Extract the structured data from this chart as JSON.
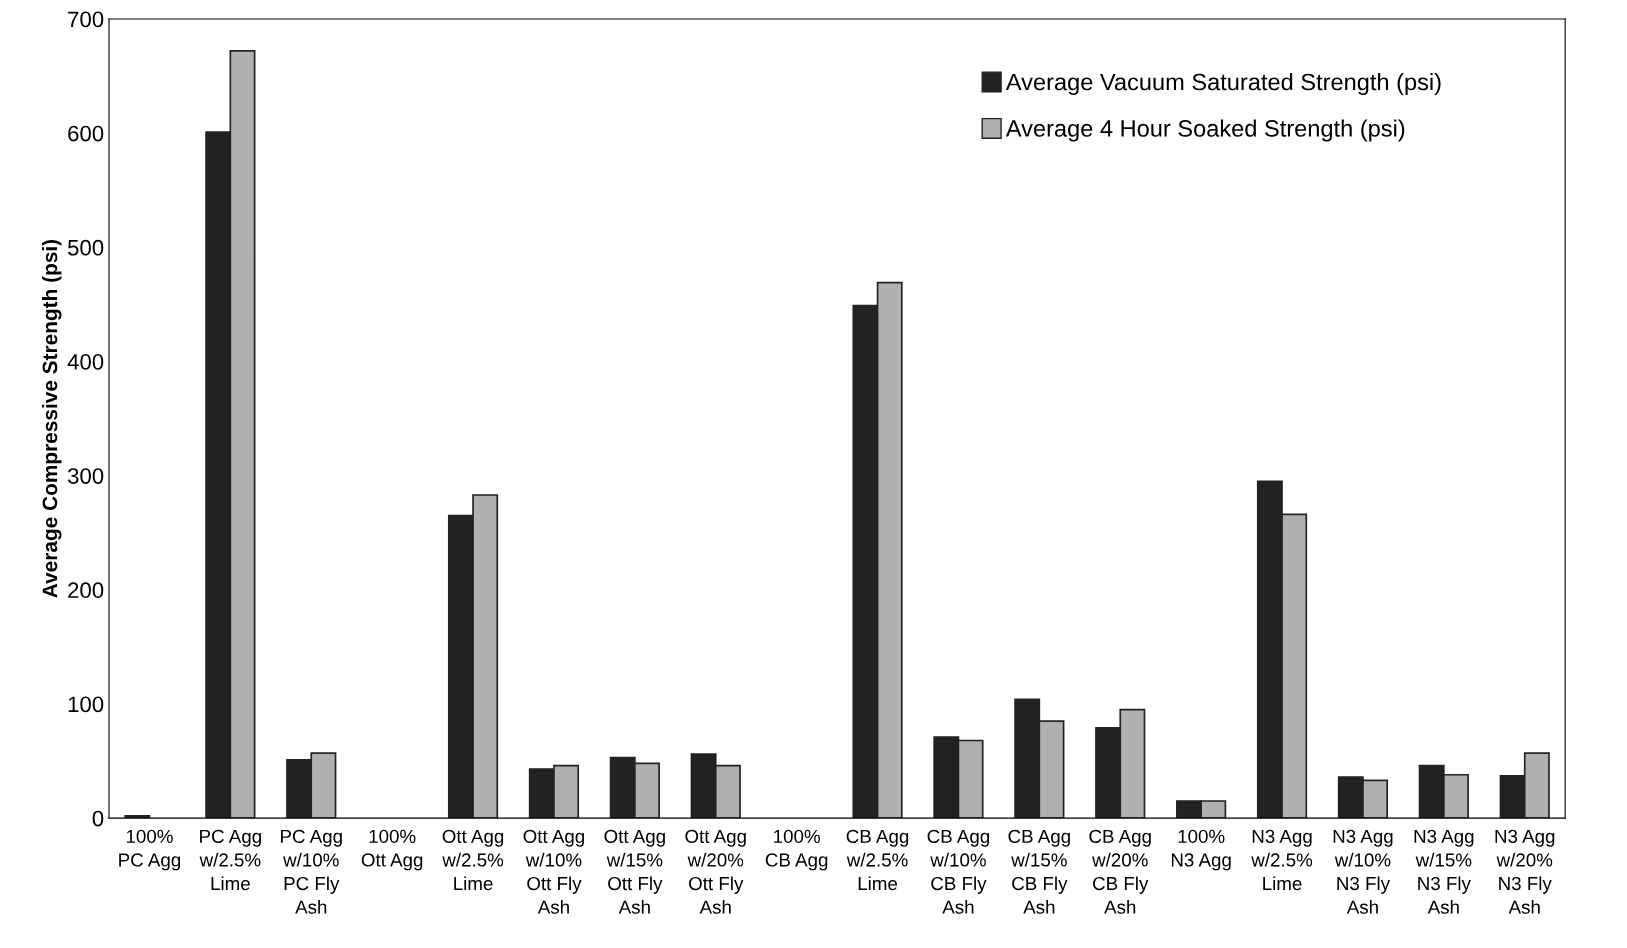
{
  "chart_data": {
    "type": "bar",
    "categories": [
      "100%\nPC Agg",
      "PC Agg\nw/2.5%\nLime",
      "PC Agg\nw/10%\nPC Fly\nAsh",
      "100%\nOtt Agg",
      "Ott Agg\nw/2.5%\nLime",
      "Ott Agg\nw/10%\nOtt Fly\nAsh",
      "Ott Agg\nw/15%\nOtt Fly\nAsh",
      "Ott Agg\nw/20%\nOtt Fly\nAsh",
      "100%\nCB Agg",
      "CB Agg\nw/2.5%\nLime",
      "CB Agg\nw/10%\nCB Fly\nAsh",
      "CB Agg\nw/15%\nCB Fly\nAsh",
      "CB Agg\nw/20%\nCB Fly\nAsh",
      "100%\nN3 Agg",
      "N3 Agg\nw/2.5%\nLime",
      "N3 Agg\nw/10%\nN3 Fly\nAsh",
      "N3 Agg\nw/15%\nN3 Fly\nAsh",
      "N3 Agg\nw/20%\nN3 Fly\nAsh"
    ],
    "series": [
      {
        "name": "Average Vacuum Saturated Strength (psi)",
        "color": "#222222",
        "values": [
          2,
          601,
          51,
          null,
          265,
          43,
          53,
          56,
          null,
          449,
          71,
          104,
          79,
          15,
          295,
          36,
          46,
          37
        ]
      },
      {
        "name": "Average 4 Hour Soaked Strength (psi)",
        "color": "#b0b0b0",
        "values": [
          null,
          672,
          57,
          null,
          283,
          46,
          48,
          46,
          null,
          469,
          68,
          85,
          95,
          15,
          266,
          33,
          38,
          57
        ]
      }
    ],
    "ylabel": "Average Compressive Strength (psi)",
    "ylim": [
      0,
      700
    ],
    "yticks": [
      0,
      100,
      200,
      300,
      400,
      500,
      600,
      700
    ],
    "legend": "top right"
  }
}
